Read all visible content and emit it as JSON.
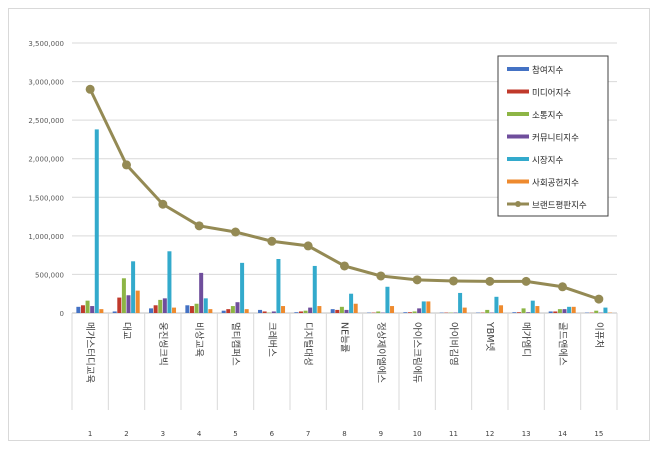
{
  "chart_data": {
    "type": "bar",
    "title": "",
    "xlabel": "",
    "ylabel": "",
    "ylim": [
      0,
      3500000
    ],
    "yticks": [
      "0",
      "500,000",
      "1,000,000",
      "1,500,000",
      "2,000,000",
      "2,500,000",
      "3,000,000",
      "3,500,000"
    ],
    "grid": true,
    "legend_position": "top-right",
    "ranks": [
      "1",
      "2",
      "3",
      "4",
      "5",
      "6",
      "7",
      "8",
      "9",
      "10",
      "11",
      "12",
      "13",
      "14",
      "15"
    ],
    "categories": [
      "메가스터디교육",
      "대교",
      "웅진씽크빅",
      "비상교육",
      "멀티캠퍼스",
      "크레버스",
      "디지털대성",
      "NE능률",
      "정상제이엘에스",
      "아이스크림에듀",
      "아이비김영",
      "YBM넷",
      "메가엠디",
      "골드앤에스",
      "이퓨처"
    ],
    "series": [
      {
        "name": "참여지수",
        "color": "#4472c4",
        "values": [
          80000,
          20000,
          60000,
          100000,
          30000,
          40000,
          10000,
          50000,
          5000,
          10000,
          5000,
          5000,
          10000,
          20000,
          5000
        ]
      },
      {
        "name": "미디어지수",
        "color": "#c0392b",
        "values": [
          100000,
          200000,
          100000,
          90000,
          50000,
          20000,
          20000,
          40000,
          5000,
          10000,
          5000,
          5000,
          10000,
          20000,
          5000
        ]
      },
      {
        "name": "소통지수",
        "color": "#8db545",
        "values": [
          160000,
          450000,
          170000,
          120000,
          90000,
          5000,
          30000,
          80000,
          20000,
          20000,
          5000,
          40000,
          60000,
          50000,
          30000
        ]
      },
      {
        "name": "커뮤니티지수",
        "color": "#6f4e9c",
        "values": [
          90000,
          230000,
          190000,
          520000,
          140000,
          20000,
          70000,
          40000,
          5000,
          60000,
          5000,
          5000,
          10000,
          50000,
          5000
        ]
      },
      {
        "name": "시장지수",
        "color": "#33aacc",
        "values": [
          2380000,
          670000,
          800000,
          190000,
          650000,
          700000,
          610000,
          250000,
          340000,
          150000,
          260000,
          210000,
          160000,
          80000,
          70000
        ]
      },
      {
        "name": "사회공헌지수",
        "color": "#ee8a2e",
        "values": [
          50000,
          290000,
          70000,
          50000,
          50000,
          90000,
          90000,
          120000,
          90000,
          150000,
          70000,
          100000,
          90000,
          80000,
          5000
        ]
      }
    ],
    "line": {
      "name": "브랜드평판지수",
      "color": "#948a54",
      "values": [
        2900000,
        1920000,
        1410000,
        1130000,
        1050000,
        930000,
        870000,
        610000,
        480000,
        430000,
        415000,
        410000,
        410000,
        340000,
        180000
      ]
    }
  }
}
